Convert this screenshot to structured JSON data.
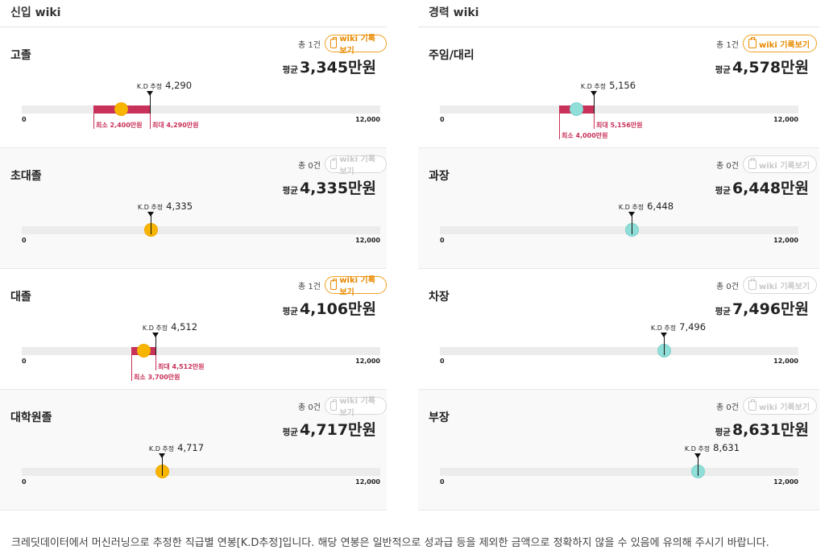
{
  "left": {
    "title": "신입 wiki",
    "cards": [
      {
        "label": "고졸",
        "count": "총 1건",
        "wiki": "wiki 기록보기",
        "wiki_enabled": true,
        "avg_prefix": "평균",
        "avg": "3,345만원",
        "kd_label": "K.D 추정",
        "kd": "4,290",
        "tick0": "0",
        "tickmax": "12,000",
        "min_label": "최소 2,400만원",
        "max_label": "최대 4,290만원"
      },
      {
        "label": "초대졸",
        "count": "총 0건",
        "wiki": "wiki 기록보기",
        "wiki_enabled": false,
        "avg_prefix": "평균",
        "avg": "4,335만원",
        "kd_label": "K.D 추정",
        "kd": "4,335",
        "tick0": "0",
        "tickmax": "12,000"
      },
      {
        "label": "대졸",
        "count": "총 1건",
        "wiki": "wiki 기록보기",
        "wiki_enabled": true,
        "avg_prefix": "평균",
        "avg": "4,106만원",
        "kd_label": "K.D 추정",
        "kd": "4,512",
        "tick0": "0",
        "tickmax": "12,000",
        "min_label": "최소 3,700만원",
        "max_label": "최대 4,512만원"
      },
      {
        "label": "대학원졸",
        "count": "총 0건",
        "wiki": "wiki 기록보기",
        "wiki_enabled": false,
        "avg_prefix": "평균",
        "avg": "4,717만원",
        "kd_label": "K.D 추정",
        "kd": "4,717",
        "tick0": "0",
        "tickmax": "12,000"
      }
    ]
  },
  "right": {
    "title": "경력 wiki",
    "cards": [
      {
        "label": "주임/대리",
        "count": "총 1건",
        "wiki": "wiki 기록보기",
        "wiki_enabled": true,
        "avg_prefix": "평균",
        "avg": "4,578만원",
        "kd_label": "K.D 추정",
        "kd": "5,156",
        "tick0": "0",
        "tickmax": "12,000",
        "min_label": "최소 4,000만원",
        "max_label": "최대 5,156만원"
      },
      {
        "label": "과장",
        "count": "총 0건",
        "wiki": "wiki 기록보기",
        "wiki_enabled": false,
        "avg_prefix": "평균",
        "avg": "6,448만원",
        "kd_label": "K.D 추정",
        "kd": "6,448",
        "tick0": "0",
        "tickmax": "12,000"
      },
      {
        "label": "차장",
        "count": "총 0건",
        "wiki": "wiki 기록보기",
        "wiki_enabled": false,
        "avg_prefix": "평균",
        "avg": "7,496만원",
        "kd_label": "K.D 추정",
        "kd": "7,496",
        "tick0": "0",
        "tickmax": "12,000"
      },
      {
        "label": "부장",
        "count": "총 0건",
        "wiki": "wiki 기록보기",
        "wiki_enabled": false,
        "avg_prefix": "평균",
        "avg": "8,631만원",
        "kd_label": "K.D 추정",
        "kd": "8,631",
        "tick0": "0",
        "tickmax": "12,000"
      }
    ]
  },
  "footnote": "크레딧데이터에서 머신러닝으로 추정한 직급별 연봉[K.D추정]입니다. 해당 연봉은 일반적으로 성과급 등을 제외한 금액으로 정확하지 않을 수 있음에 유의해 주시기 바랍니다.",
  "colors": {
    "range": "#c8325a",
    "dot_left": "#f7b500",
    "dot_right": "#8fded8",
    "wiki_accent": "#e88a00"
  }
}
